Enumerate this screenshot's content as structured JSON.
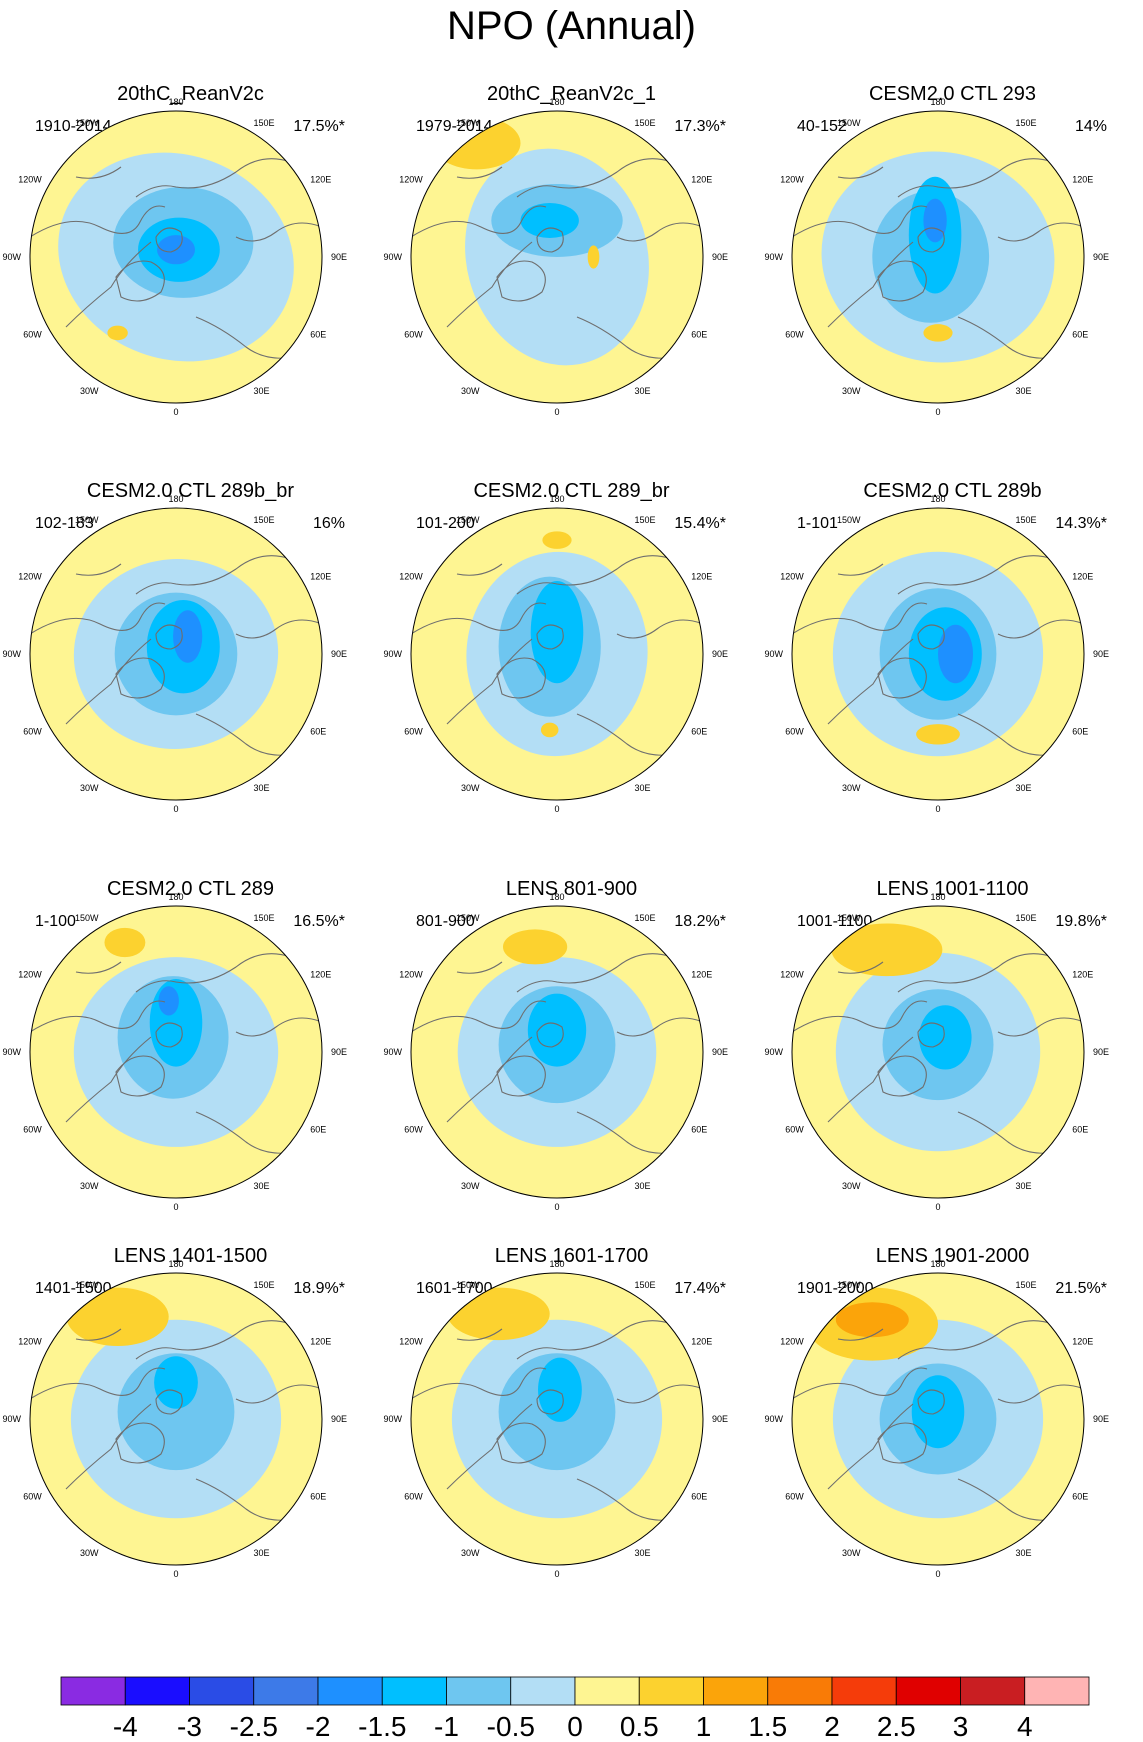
{
  "title": "NPO (Annual)",
  "panels": [
    {
      "title": "20thC_ReanV2c",
      "period": "1910-2014",
      "pct": "17.5%*",
      "variant": "a"
    },
    {
      "title": "20thC_ReanV2c_1",
      "period": "1979-2014",
      "pct": "17.3%*",
      "variant": "b"
    },
    {
      "title": "CESM2.0 CTL 293",
      "period": "40-152",
      "pct": "14%",
      "variant": "c"
    },
    {
      "title": "CESM2.0 CTL 289b_br",
      "period": "102-183",
      "pct": "16%",
      "variant": "d"
    },
    {
      "title": "CESM2.0 CTL 289_br",
      "period": "101-200",
      "pct": "15.4%*",
      "variant": "e"
    },
    {
      "title": "CESM2.0 CTL 289b",
      "period": "1-101",
      "pct": "14.3%*",
      "variant": "f"
    },
    {
      "title": "CESM2.0 CTL 289",
      "period": "1-100",
      "pct": "16.5%*",
      "variant": "g"
    },
    {
      "title": "LENS 801-900",
      "period": "801-900",
      "pct": "18.2%*",
      "variant": "h"
    },
    {
      "title": "LENS 1001-1100",
      "period": "1001-1100",
      "pct": "19.8%*",
      "variant": "i"
    },
    {
      "title": "LENS 1401-1500",
      "period": "1401-1500",
      "pct": "18.9%*",
      "variant": "j"
    },
    {
      "title": "LENS 1601-1700",
      "period": "1601-1700",
      "pct": "17.4%*",
      "variant": "k"
    },
    {
      "title": "LENS 1901-2000",
      "period": "1901-2000",
      "pct": "21.5%*",
      "variant": "l"
    }
  ],
  "longitude_labels": [
    "180",
    "150E",
    "120E",
    "90E",
    "60E",
    "30E",
    "0",
    "30W",
    "60W",
    "90W",
    "120W",
    "150W"
  ],
  "colorbar": {
    "ticks": [
      "-4",
      "-3",
      "-2.5",
      "-2",
      "-1.5",
      "-1",
      "-0.5",
      "0",
      "0.5",
      "1",
      "1.5",
      "2",
      "2.5",
      "3",
      "4"
    ],
    "colors": [
      "#8a2be2",
      "#1a0dff",
      "#2a4ce6",
      "#3d7ae8",
      "#1e90ff",
      "#00bfff",
      "#6ec6f0",
      "#b3def5",
      "#fef592",
      "#fcd22f",
      "#fba40a",
      "#f97b06",
      "#f53c0a",
      "#e00000",
      "#c91e22",
      "#ffb4b4"
    ]
  }
}
